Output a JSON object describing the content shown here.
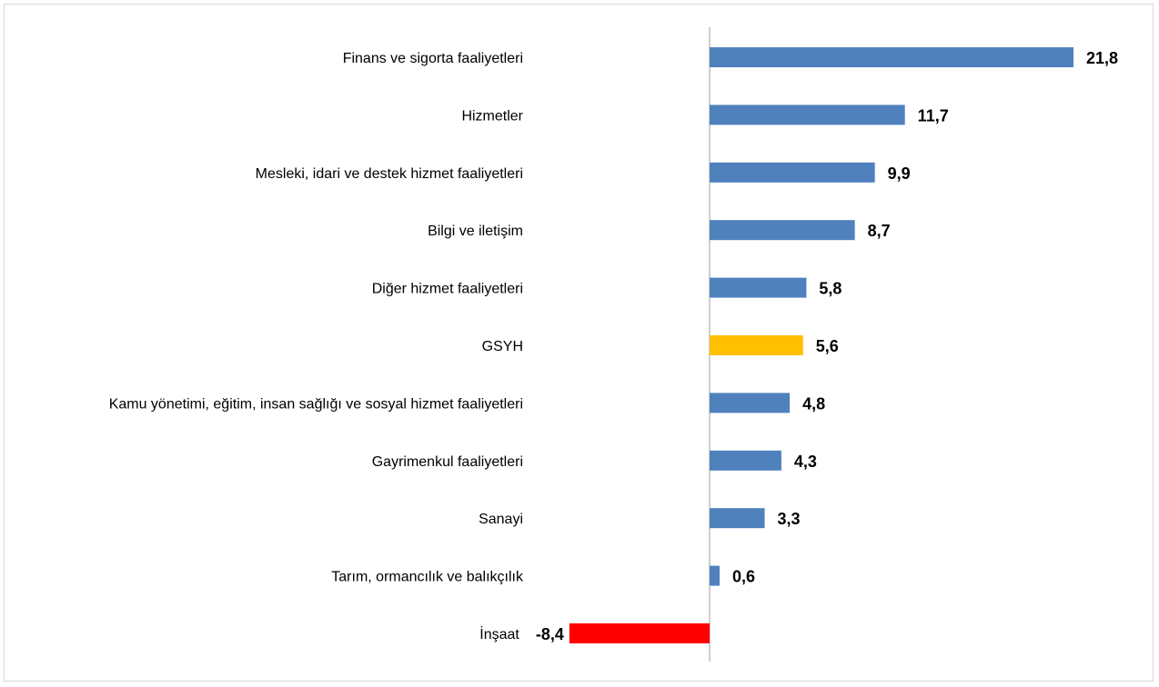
{
  "chart_data": {
    "type": "bar",
    "orientation": "horizontal",
    "categories": [
      "Finans ve sigorta faaliyetleri",
      "Hizmetler",
      "Mesleki, idari ve destek hizmet faaliyetleri",
      "Bilgi ve iletişim",
      "Diğer hizmet faaliyetleri",
      "GSYH",
      "Kamu yönetimi, eğitim, insan sağlığı ve sosyal hizmet faaliyetleri",
      "Gayrimenkul faaliyetleri",
      "Sanayi",
      "Tarım, ormancılık ve balıkçılık",
      "İnşaat"
    ],
    "values": [
      21.8,
      11.7,
      9.9,
      8.7,
      5.8,
      5.6,
      4.8,
      4.3,
      3.3,
      0.6,
      -8.4
    ],
    "value_labels": [
      "21,8",
      "11,7",
      "9,9",
      "8,7",
      "5,8",
      "5,6",
      "4,8",
      "4,3",
      "3,3",
      "0,6",
      "-8,4"
    ],
    "bar_colors": [
      "#4f81bd",
      "#4f81bd",
      "#4f81bd",
      "#4f81bd",
      "#4f81bd",
      "#ffc000",
      "#4f81bd",
      "#4f81bd",
      "#4f81bd",
      "#4f81bd",
      "#ff0000"
    ],
    "axis_color": "#bfbfbf",
    "title": "",
    "xlabel": "",
    "ylabel": "",
    "grid": false,
    "legend": "none",
    "xlim": [
      -8.4,
      21.8
    ]
  }
}
